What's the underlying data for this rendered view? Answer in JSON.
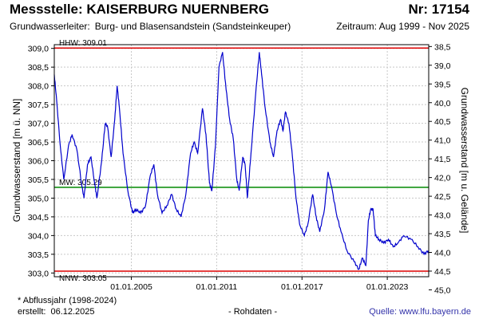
{
  "header": {
    "title": "Messstelle: KAISERBURG NUERNBERG",
    "nr": "Nr: 17154",
    "aquifer_label": "Grundwasserleiter:",
    "aquifer_value": "Burg- und Blasensandstein (Sandsteinkeuper)",
    "period": "Zeitraum: Aug 1999 - Nov 2025"
  },
  "footer": {
    "note": "* Abflussjahr (1998-2024)",
    "created_label": "erstellt:",
    "created_value": "06.12.2025",
    "raw": "- Rohdaten -",
    "source_label": "Quelle:",
    "source_link": "www.lfu.bayern.de"
  },
  "colors": {
    "series": "#0000cc",
    "hhw": "#dd0000",
    "nnw": "#dd0000",
    "mw": "#008800",
    "grid": "#c8c8c8"
  },
  "chart_data": {
    "type": "line",
    "ylabel": "Grundwasserstand [m ü. NN]",
    "y2label": "Grundwasserstand [m u. Gelände]",
    "ylim": [
      302.9,
      309.1
    ],
    "yticks": [
      "303,0",
      "303,5",
      "304,0",
      "304,5",
      "305,0",
      "305,5",
      "306,0",
      "306,5",
      "307,0",
      "307,5",
      "308,0",
      "308,5",
      "309,0"
    ],
    "ytick_values": [
      303.0,
      303.5,
      304.0,
      304.5,
      305.0,
      305.5,
      306.0,
      306.5,
      307.0,
      307.5,
      308.0,
      308.5,
      309.0
    ],
    "y2ticks": [
      "38,5",
      "39,0",
      "39,5",
      "40,0",
      "40,5",
      "41,0",
      "41,5",
      "42,0",
      "42,5",
      "43,0",
      "43,5",
      "44,0",
      "44,5",
      "45,0"
    ],
    "y2tick_values": [
      38.5,
      39.0,
      39.5,
      40.0,
      40.5,
      41.0,
      41.5,
      42.0,
      42.5,
      43.0,
      43.5,
      44.0,
      44.5,
      45.0
    ],
    "y2_reference_level": 347.55,
    "xlim": [
      "1999-08-01",
      "2025-11-30"
    ],
    "xticks": [
      "01.01.2005",
      "01.01.2011",
      "01.01.2017",
      "01.01.2023"
    ],
    "xtick_dates": [
      "2005-01-01",
      "2011-01-01",
      "2017-01-01",
      "2023-01-01"
    ],
    "grid": true,
    "reference_lines": [
      {
        "label": "HHW: 309.01",
        "value": 309.01,
        "color": "#dd0000"
      },
      {
        "label": "MW: 305.29",
        "value": 305.29,
        "color": "#008800"
      },
      {
        "label": "NNW: 303.05",
        "value": 303.05,
        "color": "#dd0000"
      }
    ],
    "series": [
      {
        "color": "#0000cc",
        "points": [
          [
            "1999-08-01",
            308.3
          ],
          [
            "1999-10-01",
            307.6
          ],
          [
            "2000-01-01",
            306.4
          ],
          [
            "2000-04-01",
            305.5
          ],
          [
            "2000-08-01",
            306.4
          ],
          [
            "2000-11-01",
            306.7
          ],
          [
            "2001-03-01",
            306.3
          ],
          [
            "2001-07-01",
            305.4
          ],
          [
            "2001-09-01",
            305.0
          ],
          [
            "2001-12-01",
            305.9
          ],
          [
            "2002-03-01",
            306.1
          ],
          [
            "2002-06-01",
            305.4
          ],
          [
            "2002-08-01",
            305.0
          ],
          [
            "2002-12-01",
            306.0
          ],
          [
            "2003-03-01",
            307.0
          ],
          [
            "2003-05-01",
            306.9
          ],
          [
            "2003-08-01",
            306.1
          ],
          [
            "2003-11-01",
            307.1
          ],
          [
            "2004-01-01",
            308.0
          ],
          [
            "2004-03-01",
            307.4
          ],
          [
            "2004-06-01",
            306.2
          ],
          [
            "2004-10-01",
            305.2
          ],
          [
            "2005-02-01",
            304.6
          ],
          [
            "2005-05-01",
            304.7
          ],
          [
            "2005-09-01",
            304.6
          ],
          [
            "2006-01-01",
            304.8
          ],
          [
            "2006-05-01",
            305.6
          ],
          [
            "2006-08-01",
            305.9
          ],
          [
            "2006-11-01",
            305.1
          ],
          [
            "2007-03-01",
            304.6
          ],
          [
            "2007-07-01",
            304.8
          ],
          [
            "2007-11-01",
            305.1
          ],
          [
            "2008-03-01",
            304.7
          ],
          [
            "2008-07-01",
            304.5
          ],
          [
            "2008-11-01",
            305.1
          ],
          [
            "2009-03-01",
            306.2
          ],
          [
            "2009-06-01",
            306.5
          ],
          [
            "2009-09-01",
            306.2
          ],
          [
            "2010-01-01",
            307.4
          ],
          [
            "2010-04-01",
            306.7
          ],
          [
            "2010-07-01",
            305.4
          ],
          [
            "2010-09-01",
            305.2
          ],
          [
            "2010-12-01",
            306.4
          ],
          [
            "2011-03-01",
            308.5
          ],
          [
            "2011-06-01",
            308.9
          ],
          [
            "2011-09-01",
            307.9
          ],
          [
            "2011-12-01",
            307.1
          ],
          [
            "2012-03-01",
            306.6
          ],
          [
            "2012-06-01",
            305.5
          ],
          [
            "2012-08-01",
            305.2
          ],
          [
            "2012-11-01",
            306.1
          ],
          [
            "2013-01-01",
            305.9
          ],
          [
            "2013-03-01",
            305.0
          ],
          [
            "2013-06-01",
            306.2
          ],
          [
            "2013-10-01",
            307.8
          ],
          [
            "2014-01-01",
            308.9
          ],
          [
            "2014-03-01",
            308.3
          ],
          [
            "2014-06-01",
            307.4
          ],
          [
            "2014-10-01",
            306.5
          ],
          [
            "2015-01-01",
            306.1
          ],
          [
            "2015-04-01",
            306.8
          ],
          [
            "2015-07-01",
            307.1
          ],
          [
            "2015-09-01",
            306.8
          ],
          [
            "2015-11-01",
            307.3
          ],
          [
            "2016-02-01",
            307.0
          ],
          [
            "2016-05-01",
            306.1
          ],
          [
            "2016-08-01",
            305.0
          ],
          [
            "2016-11-01",
            304.3
          ],
          [
            "2017-03-01",
            304.0
          ],
          [
            "2017-06-01",
            304.3
          ],
          [
            "2017-10-01",
            305.1
          ],
          [
            "2018-01-01",
            304.5
          ],
          [
            "2018-04-01",
            304.1
          ],
          [
            "2018-08-01",
            304.7
          ],
          [
            "2018-11-01",
            305.7
          ],
          [
            "2019-02-01",
            305.3
          ],
          [
            "2019-06-01",
            304.6
          ],
          [
            "2019-10-01",
            304.1
          ],
          [
            "2020-03-01",
            303.6
          ],
          [
            "2020-09-01",
            303.3
          ],
          [
            "2021-01-01",
            303.1
          ],
          [
            "2021-04-01",
            303.4
          ],
          [
            "2021-07-01",
            303.2
          ],
          [
            "2021-09-01",
            304.4
          ],
          [
            "2021-11-01",
            304.7
          ],
          [
            "2022-01-01",
            304.7
          ],
          [
            "2022-03-01",
            304.0
          ],
          [
            "2022-06-01",
            303.9
          ],
          [
            "2022-10-01",
            303.8
          ],
          [
            "2023-02-01",
            303.9
          ],
          [
            "2023-06-01",
            303.7
          ],
          [
            "2023-10-01",
            303.8
          ],
          [
            "2024-03-01",
            304.0
          ],
          [
            "2024-09-01",
            303.9
          ],
          [
            "2025-03-01",
            303.7
          ],
          [
            "2025-08-01",
            303.5
          ],
          [
            "2025-11-30",
            303.6
          ]
        ]
      }
    ]
  }
}
